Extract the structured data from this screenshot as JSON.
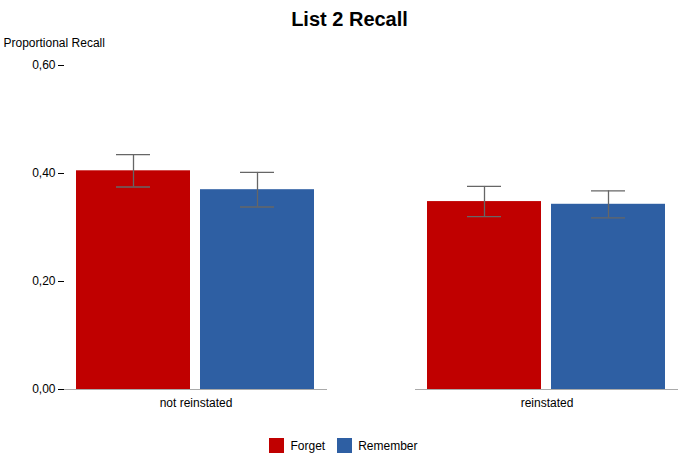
{
  "chart_data": {
    "type": "bar",
    "title": "List 2 Recall",
    "ylabel": "Proportional Recall",
    "categories": [
      "not reinstated",
      "reinstated"
    ],
    "series": [
      {
        "name": "Forget",
        "color": "#c00000",
        "values": [
          0.405,
          0.348
        ],
        "errors": [
          0.03,
          0.028
        ]
      },
      {
        "name": "Remember",
        "color": "#2e5fa3",
        "values": [
          0.37,
          0.343
        ],
        "errors": [
          0.032,
          0.025
        ]
      }
    ],
    "ylim": [
      0.0,
      0.6
    ],
    "yticks": [
      {
        "value": 0.0,
        "label": "0,00"
      },
      {
        "value": 0.2,
        "label": "0,20"
      },
      {
        "value": 0.4,
        "label": "0,40"
      },
      {
        "value": 0.6,
        "label": "0,60"
      }
    ],
    "grid": false,
    "legend": "bottom"
  }
}
